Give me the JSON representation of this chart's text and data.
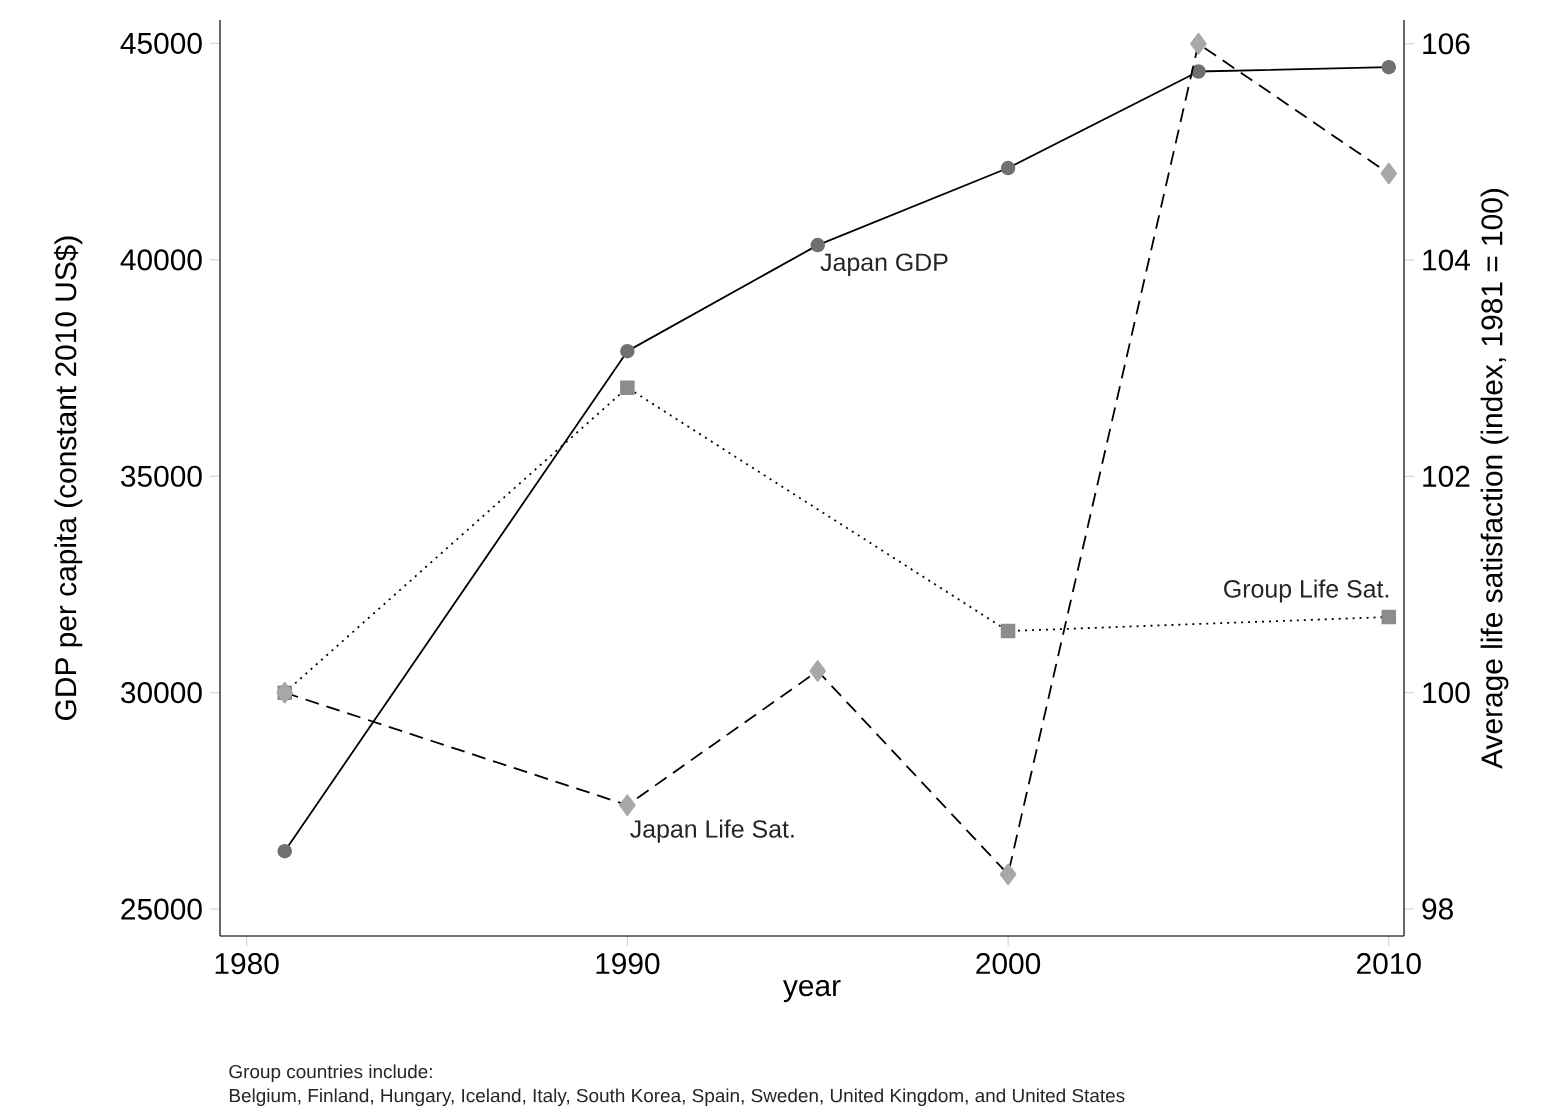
{
  "chart_data": {
    "type": "line",
    "xlabel": "year",
    "ylabel": "GDP per capita (constant 2010 US$)",
    "y2label": "Average life satisfaction (index, 1981 = 100)",
    "x": [
      1981,
      1990,
      1995,
      2000,
      2005,
      2010
    ],
    "xlim": [
      1979.3,
      2010.4
    ],
    "xticks": [
      1980,
      1990,
      2000,
      2010
    ],
    "ylim": [
      24380,
      45540
    ],
    "yticks": [
      25000,
      30000,
      35000,
      40000,
      45000
    ],
    "y2lim": [
      97.75,
      106.22
    ],
    "y2ticks": [
      98,
      100,
      102,
      104,
      106
    ],
    "series": [
      {
        "name": "Japan GDP",
        "color": "#707070",
        "marker": "circle",
        "line_style": "solid",
        "values": [
          26340,
          37890,
          40340,
          42120,
          44350,
          44450
        ]
      },
      {
        "name": "Group Life Sat.",
        "color": "#8c8c8c",
        "marker": "square",
        "line_style": "dotted",
        "axis": "y2",
        "x": [
          1981,
          1990,
          2000,
          2010
        ],
        "values": [
          100,
          102.82,
          100.57,
          100.7
        ]
      },
      {
        "name": "Japan Life Sat.",
        "color": "#a8a8a8",
        "marker": "diamond",
        "line_style": "dashed",
        "axis": "y2",
        "values": [
          100,
          98.96,
          100.2,
          98.32,
          106.0,
          104.8
        ]
      }
    ],
    "annotations": [
      "Group countries include:",
      "Belgium, Finland, Hungary, Iceland, Italy, South Korea, Spain, Sweden, United Kingdom, and United States"
    ]
  }
}
